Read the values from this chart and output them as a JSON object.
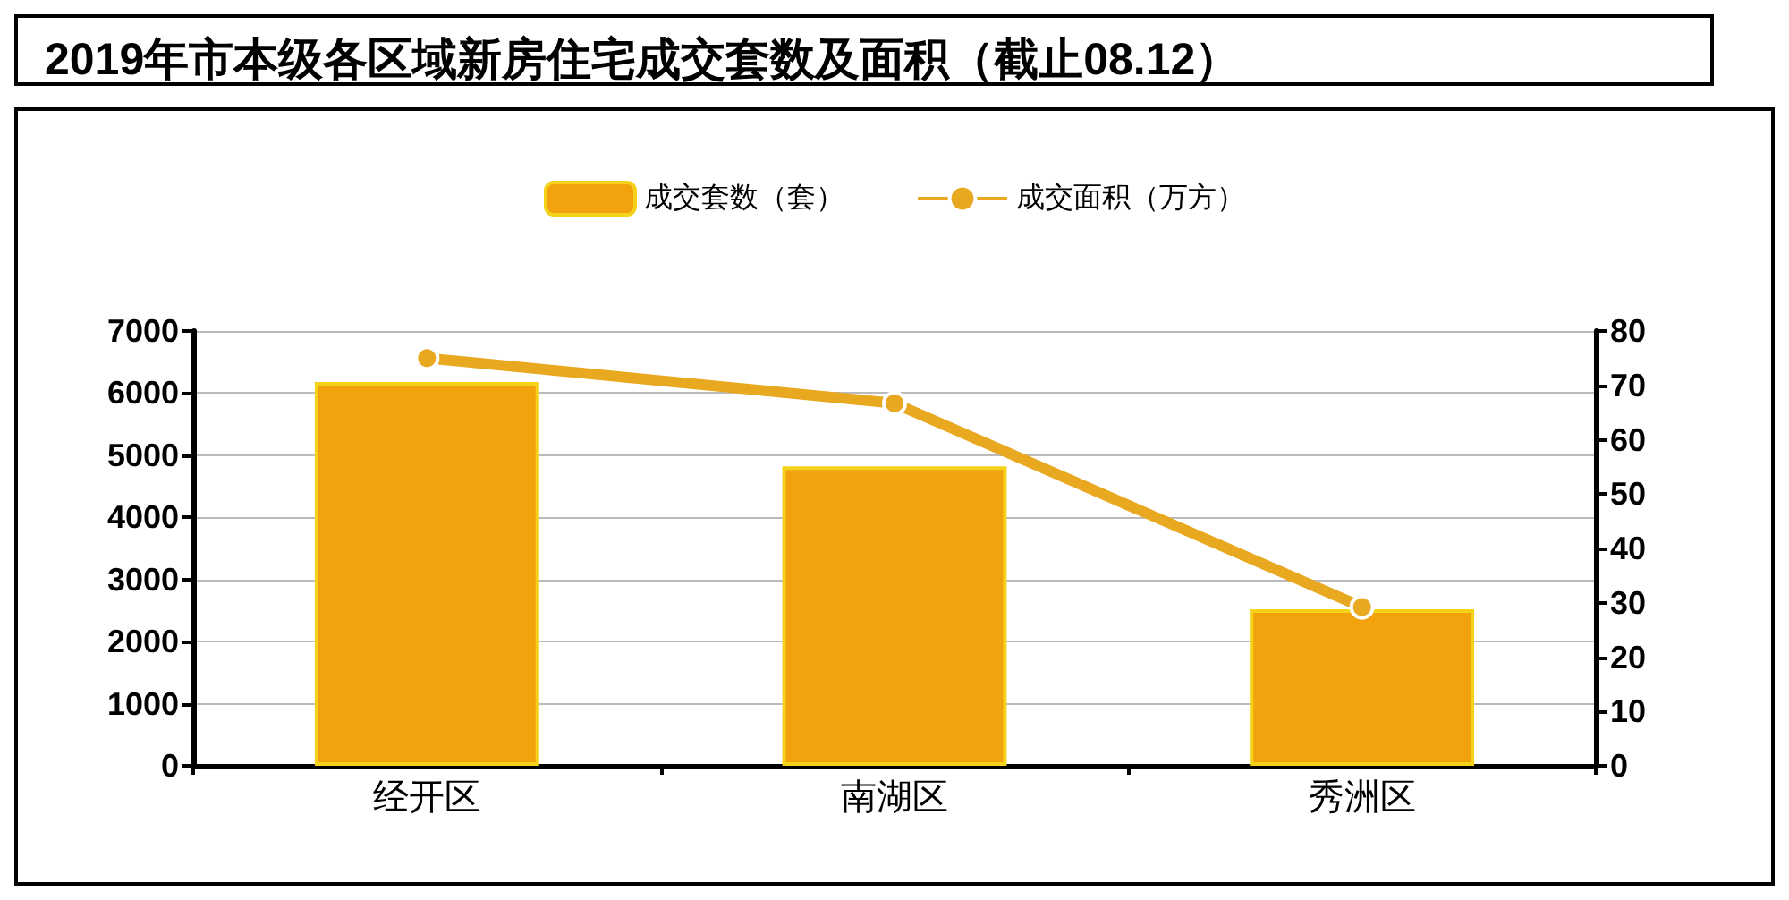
{
  "chart_data": {
    "type": "bar",
    "title": "2019年市本级各区域新房住宅成交套数及面积（截止08.12）",
    "categories": [
      "经开区",
      "南湖区",
      "秀洲区"
    ],
    "series": [
      {
        "name": "成交套数（套）",
        "color": "#f2a20c",
        "values": [
          6180,
          4820,
          2520
        ]
      },
      {
        "name": "成交面积（万方）",
        "type": "line",
        "axis": "y2",
        "color": "#e8a820",
        "values": [
          75,
          66.7,
          29.2
        ]
      }
    ],
    "ylim": [
      0,
      7000
    ],
    "yticks": [
      0,
      1000,
      2000,
      3000,
      4000,
      5000,
      6000,
      7000
    ],
    "y2lim": [
      0,
      80
    ],
    "y2ticks": [
      0,
      10,
      20,
      30,
      40,
      50,
      60,
      70,
      80
    ],
    "grid": "y",
    "legend": "top",
    "marker": "circle"
  }
}
